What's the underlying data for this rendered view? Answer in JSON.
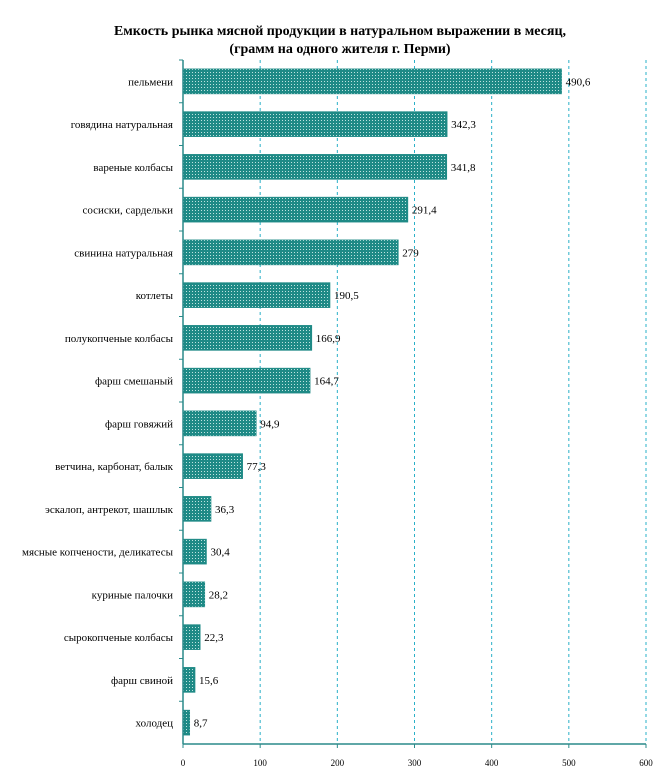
{
  "chart_data": {
    "type": "bar",
    "orientation": "horizontal",
    "title_lines": [
      "Емкость рынка мясной продукции в натуральном выражении в месяц,",
      "(грамм на одного жителя г. Перми)"
    ],
    "categories": [
      "пельмени",
      "говядина натуральная",
      "вареные колбасы",
      "сосиски, сардельки",
      "свинина натуральная",
      "котлеты",
      "полукопченые колбасы",
      "фарш смешаный",
      "фарш говяжий",
      "ветчина, карбонат, балык",
      "эскалоп, антрекот, шашлык",
      "мясные копчености, деликатесы",
      "куриные палочки",
      "сырокопченые колбасы",
      "фарш свиной",
      "холодец"
    ],
    "values": [
      490.6,
      342.3,
      341.8,
      291.4,
      279,
      190.5,
      166.9,
      164.7,
      94.9,
      77.3,
      36.3,
      30.4,
      28.2,
      22.3,
      15.6,
      8.7
    ],
    "value_labels": [
      "490,6",
      "342,3",
      "341,8",
      "291,4",
      "279",
      "190,5",
      "166,9",
      "164,7",
      "94,9",
      "77,3",
      "36,3",
      "30,4",
      "28,2",
      "22,3",
      "15,6",
      "8,7"
    ],
    "x_ticks": [
      "0",
      "100",
      "200",
      "300",
      "400",
      "500",
      "600"
    ],
    "xlim": [
      0,
      600
    ],
    "grid": "vertical dashed",
    "bar_color": "#1f8a86",
    "axis_color": "#2a8a8a",
    "grid_color": "#2ab0c8"
  }
}
